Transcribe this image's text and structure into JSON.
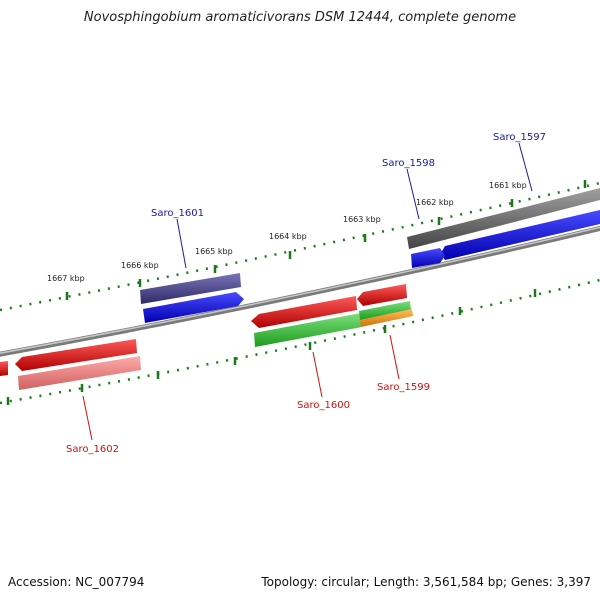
{
  "title": "Novosphingobium aromaticivorans DSM 12444, complete genome",
  "accession": "Accession: NC_007794",
  "summary": "Topology: circular; Length: 3,561,584 bp; Genes: 3,397",
  "scale_labels": [
    "1667 kbp",
    "1666 kbp",
    "1665 kbp",
    "1664 kbp",
    "1663 kbp",
    "1662 kbp",
    "1661 kbp"
  ],
  "gene_labels": {
    "plus": [
      "Saro_1601",
      "Saro_1598",
      "Saro_1597"
    ],
    "minus": [
      "Saro_1602",
      "Saro_1600",
      "Saro_1599"
    ]
  },
  "colors": {
    "backbone": "#8a8a8a",
    "tick": "#1a7a1a",
    "plus_label": "#1a1aa8",
    "minus_label": "#cc1111",
    "cds_blue": "#1010e8",
    "cds_red": "#e81010",
    "cds_green": "#3ac63a",
    "cds_orange": "#f0900a",
    "cds_gray": "#6a6a6a",
    "cds_slate": "#4a4488",
    "cds_pink": "#e87a7a"
  }
}
